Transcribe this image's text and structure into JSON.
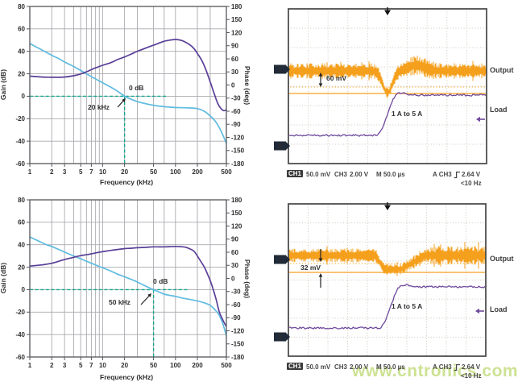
{
  "watermark": "www.cntronics.com",
  "colors": {
    "gain_trace": "#5fbbe0",
    "phase_trace": "#5a3f97",
    "crossover_dash": "#12a78e",
    "scope_orange": "#f5a01d",
    "scope_purple": "#6f4a9d",
    "bode_grid": "#a9a9af",
    "bode_border": "#55555a",
    "scope_grid": "#cbc6ba",
    "scope_border": "#4e4e4e",
    "annotation_ink": "#222222",
    "channel_marker_bg": "#202a38"
  },
  "chart_data": [
    {
      "id": "bode_top",
      "type": "line",
      "xlabel": "Frequency (kHz)",
      "ylabel": "Gain (dB)",
      "y2label": "Phase (deg)",
      "xscale": "log",
      "xlim": [
        1,
        500
      ],
      "ylim": [
        -60,
        80
      ],
      "y2lim": [
        -180,
        180
      ],
      "x_ticks": [
        1,
        2,
        3,
        5,
        7,
        10,
        20,
        50,
        100,
        200,
        500
      ],
      "x_grid": [
        2,
        3,
        4,
        5,
        6,
        7,
        8,
        9,
        10,
        20,
        30,
        50,
        70,
        100,
        200,
        300
      ],
      "y_ticks": [
        80,
        60,
        40,
        20,
        0,
        -20,
        -40,
        -60
      ],
      "y2_ticks": [
        180,
        150,
        120,
        90,
        60,
        30,
        0,
        -30,
        -60,
        -90,
        -120,
        -150,
        -180
      ],
      "annotations": {
        "zero_db": "0 dB",
        "freq": "20 kHz",
        "crossover_khz": 20
      },
      "series": [
        {
          "name": "Gain (dB)",
          "axis": "y",
          "color": "gain_trace",
          "points": [
            [
              1,
              47
            ],
            [
              1.3,
              43
            ],
            [
              1.7,
              39
            ],
            [
              2,
              36.5
            ],
            [
              2.5,
              33.5
            ],
            [
              3,
              30.5
            ],
            [
              4,
              26.5
            ],
            [
              5,
              23
            ],
            [
              6,
              20
            ],
            [
              7,
              17.5
            ],
            [
              8.5,
              14.5
            ],
            [
              10,
              12
            ],
            [
              13,
              8
            ],
            [
              16,
              4.5
            ],
            [
              20,
              0
            ],
            [
              25,
              -2.8
            ],
            [
              30,
              -4.8
            ],
            [
              40,
              -6.8
            ],
            [
              50,
              -8
            ],
            [
              70,
              -9.3
            ],
            [
              100,
              -10
            ],
            [
              140,
              -10.3
            ],
            [
              200,
              -11
            ],
            [
              250,
              -13.5
            ],
            [
              300,
              -17.5
            ],
            [
              350,
              -22
            ],
            [
              400,
              -28
            ],
            [
              450,
              -35
            ],
            [
              500,
              -42
            ]
          ]
        },
        {
          "name": "Phase (deg)",
          "axis": "y2",
          "color": "phase_trace",
          "points": [
            [
              1,
              46
            ],
            [
              1.5,
              44
            ],
            [
              2,
              43.5
            ],
            [
              2.5,
              43.5
            ],
            [
              3,
              44
            ],
            [
              4,
              47
            ],
            [
              5,
              51
            ],
            [
              6,
              56
            ],
            [
              7,
              61
            ],
            [
              8,
              65
            ],
            [
              10,
              71
            ],
            [
              13,
              77
            ],
            [
              16,
              84
            ],
            [
              20,
              90
            ],
            [
              25,
              97
            ],
            [
              30,
              103
            ],
            [
              40,
              111
            ],
            [
              50,
              117
            ],
            [
              60,
              122
            ],
            [
              70,
              126
            ],
            [
              80,
              128
            ],
            [
              100,
              130
            ],
            [
              120,
              128
            ],
            [
              140,
              123
            ],
            [
              160,
              117
            ],
            [
              180,
              109
            ],
            [
              200,
              98
            ],
            [
              230,
              82
            ],
            [
              260,
              62
            ],
            [
              300,
              33
            ],
            [
              340,
              6
            ],
            [
              380,
              -16
            ],
            [
              420,
              -28
            ],
            [
              460,
              -33
            ],
            [
              500,
              -31
            ]
          ]
        }
      ]
    },
    {
      "id": "scope_top",
      "type": "scope",
      "divisions": {
        "cols": 10,
        "rows": 8
      },
      "labels": {
        "output": "Output",
        "load": "Load",
        "step": "1 A to 5 A",
        "measure": "60 mV"
      },
      "channel_markers": [
        "1",
        "3"
      ],
      "traces": [
        {
          "name": "Output (CH1)",
          "color": "scope_orange",
          "ripple_mV": 60
        },
        {
          "name": "Load (CH3)",
          "color": "scope_purple",
          "step": "1 A to 5 A"
        }
      ],
      "status": {
        "ch1": "CH1",
        "ch1_scale": "50.0 mV",
        "ch3": "CH3",
        "ch3_scale": "2.00 V",
        "timebase": "M 50.0 µs",
        "trigger_source": "A CH3",
        "trigger_level": "2.64 V",
        "trigger_freq": "<10 Hz"
      }
    },
    {
      "id": "bode_bottom",
      "type": "line",
      "xlabel": "Frequency (kHz)",
      "ylabel": "Gain (dB)",
      "y2label": "Phase (deg)",
      "xscale": "log",
      "xlim": [
        1,
        500
      ],
      "ylim": [
        -60,
        80
      ],
      "y2lim": [
        -180,
        180
      ],
      "x_ticks": [
        1,
        2,
        3,
        5,
        7,
        10,
        20,
        50,
        100,
        200,
        500
      ],
      "x_grid": [
        2,
        3,
        4,
        5,
        6,
        7,
        8,
        9,
        10,
        20,
        30,
        50,
        70,
        100,
        200,
        300
      ],
      "y_ticks": [
        80,
        60,
        40,
        20,
        0,
        -20,
        -40,
        -60
      ],
      "y2_ticks": [
        180,
        150,
        120,
        90,
        60,
        30,
        0,
        -30,
        -60,
        -90,
        -120,
        -150,
        -180
      ],
      "annotations": {
        "zero_db": "0 dB",
        "freq": "50 kHz",
        "crossover_khz": 50
      },
      "series": [
        {
          "name": "Gain (dB)",
          "axis": "y",
          "color": "gain_trace",
          "points": [
            [
              1,
              47
            ],
            [
              1.3,
              43.5
            ],
            [
              1.7,
              40
            ],
            [
              2,
              38.5
            ],
            [
              2.5,
              35.8
            ],
            [
              3,
              33.5
            ],
            [
              4,
              30
            ],
            [
              5,
              27.5
            ],
            [
              6,
              25.3
            ],
            [
              7,
              23.5
            ],
            [
              8.5,
              21.3
            ],
            [
              10,
              19.5
            ],
            [
              13,
              16.5
            ],
            [
              16,
              13.8
            ],
            [
              20,
              11.5
            ],
            [
              25,
              9
            ],
            [
              30,
              6.8
            ],
            [
              40,
              2.8
            ],
            [
              50,
              0
            ],
            [
              60,
              -2.2
            ],
            [
              70,
              -4
            ],
            [
              85,
              -5.2
            ],
            [
              100,
              -6
            ],
            [
              130,
              -7.7
            ],
            [
              160,
              -8.8
            ],
            [
              200,
              -10
            ],
            [
              250,
              -11.8
            ],
            [
              300,
              -14
            ],
            [
              350,
              -18
            ],
            [
              400,
              -23
            ],
            [
              450,
              -31
            ],
            [
              500,
              -41
            ]
          ]
        },
        {
          "name": "Phase (deg)",
          "axis": "y2",
          "color": "phase_trace",
          "points": [
            [
              1,
              54
            ],
            [
              1.5,
              57
            ],
            [
              2,
              60.5
            ],
            [
              2.5,
              65
            ],
            [
              3,
              69
            ],
            [
              4,
              74
            ],
            [
              5,
              78
            ],
            [
              6,
              80
            ],
            [
              7,
              82
            ],
            [
              8.5,
              85
            ],
            [
              10,
              87
            ],
            [
              13,
              90
            ],
            [
              16,
              92
            ],
            [
              20,
              94
            ],
            [
              25,
              95
            ],
            [
              30,
              96
            ],
            [
              40,
              97
            ],
            [
              50,
              98
            ],
            [
              70,
              98
            ],
            [
              100,
              99
            ],
            [
              120,
              98.5
            ],
            [
              140,
              97
            ],
            [
              160,
              93
            ],
            [
              180,
              88
            ],
            [
              200,
              77
            ],
            [
              220,
              66
            ],
            [
              250,
              51
            ],
            [
              280,
              33
            ],
            [
              300,
              21
            ],
            [
              330,
              0
            ],
            [
              360,
              -21
            ],
            [
              400,
              -51
            ],
            [
              440,
              -67
            ],
            [
              470,
              -77
            ],
            [
              500,
              -84
            ]
          ]
        }
      ]
    },
    {
      "id": "scope_bottom",
      "type": "scope",
      "divisions": {
        "cols": 10,
        "rows": 8
      },
      "labels": {
        "output": "Output",
        "load": "Load",
        "step": "1 A to 5 A",
        "measure": "32 mV"
      },
      "channel_markers": [
        "1",
        "3"
      ],
      "traces": [
        {
          "name": "Output (CH1)",
          "color": "scope_orange",
          "ripple_mV": 32
        },
        {
          "name": "Load (CH3)",
          "color": "scope_purple",
          "step": "1 A to 5 A"
        }
      ],
      "status": {
        "ch1": "CH1",
        "ch1_scale": "50.0 mV",
        "ch3": "CH3",
        "ch3_scale": "2.00 V",
        "timebase": "M 50.0 µs",
        "trigger_source": "A CH3",
        "trigger_level": "2.64 V",
        "trigger_freq": "<10 Hz"
      }
    }
  ]
}
